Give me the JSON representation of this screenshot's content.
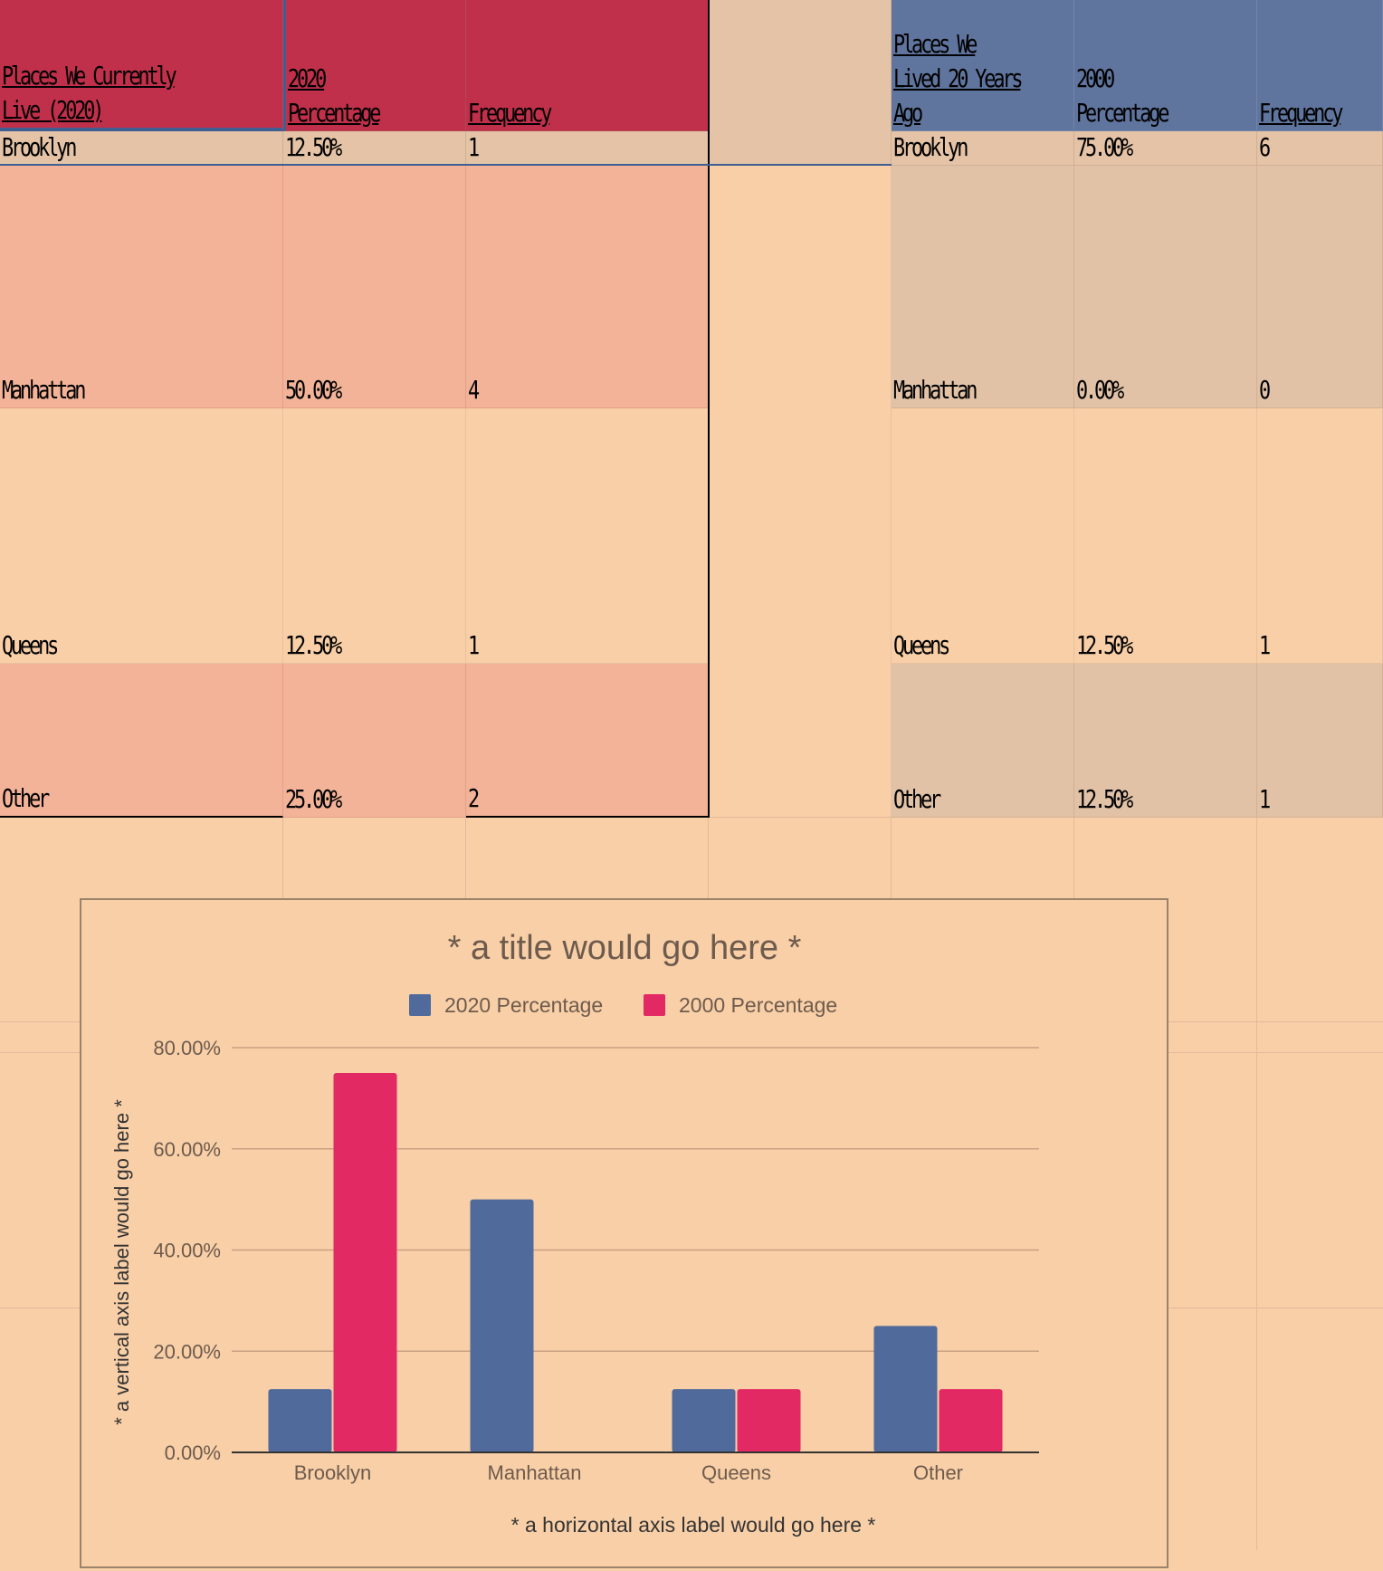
{
  "table_2020": {
    "headers": [
      "Places We Currently\nLive (2020)",
      "2020\nPercentage",
      "Frequency"
    ],
    "rows": [
      {
        "place": "Brooklyn",
        "percentage": "12.50%",
        "frequency": "1"
      },
      {
        "place": "Manhattan",
        "percentage": "50.00%",
        "frequency": "4"
      },
      {
        "place": "Queens",
        "percentage": "12.50%",
        "frequency": "1"
      },
      {
        "place": "Other",
        "percentage": "25.00%",
        "frequency": "2"
      }
    ]
  },
  "table_2000": {
    "headers": [
      "Places We\nLived 20 Years\nAgo",
      "2000\nPercentage",
      "Frequency"
    ],
    "rows": [
      {
        "place": "Brooklyn",
        "percentage": "75.00%",
        "frequency": "6"
      },
      {
        "place": "Manhattan",
        "percentage": "0.00%",
        "frequency": "0"
      },
      {
        "place": "Queens",
        "percentage": "12.50%",
        "frequency": "1"
      },
      {
        "place": "Other",
        "percentage": "12.50%",
        "frequency": "1"
      }
    ]
  },
  "colors": {
    "header_2020": "#c1304b",
    "header_2000": "#60759e",
    "series_2020": "#4f6a9b",
    "series_2000": "#e32963",
    "sheet_background": "#f8cfa7"
  },
  "chart_data": {
    "type": "bar",
    "title": "* a title would go here *",
    "xlabel": "* a horizontal axis label would go here *",
    "ylabel": "* a vertical axis label would go here *",
    "categories": [
      "Brooklyn",
      "Manhattan",
      "Queens",
      "Other"
    ],
    "series": [
      {
        "name": "2020 Percentage",
        "values": [
          12.5,
          50.0,
          12.5,
          25.0
        ],
        "color": "#4f6a9b"
      },
      {
        "name": "2000 Percentage",
        "values": [
          75.0,
          0.0,
          12.5,
          12.5
        ],
        "color": "#e32963"
      }
    ],
    "ylim": [
      0,
      80
    ],
    "yticks": [
      "0.00%",
      "20.00%",
      "40.00%",
      "60.00%",
      "80.00%"
    ],
    "ytick_values": [
      0,
      20,
      40,
      60,
      80
    ],
    "grid": true,
    "legend": "top"
  }
}
